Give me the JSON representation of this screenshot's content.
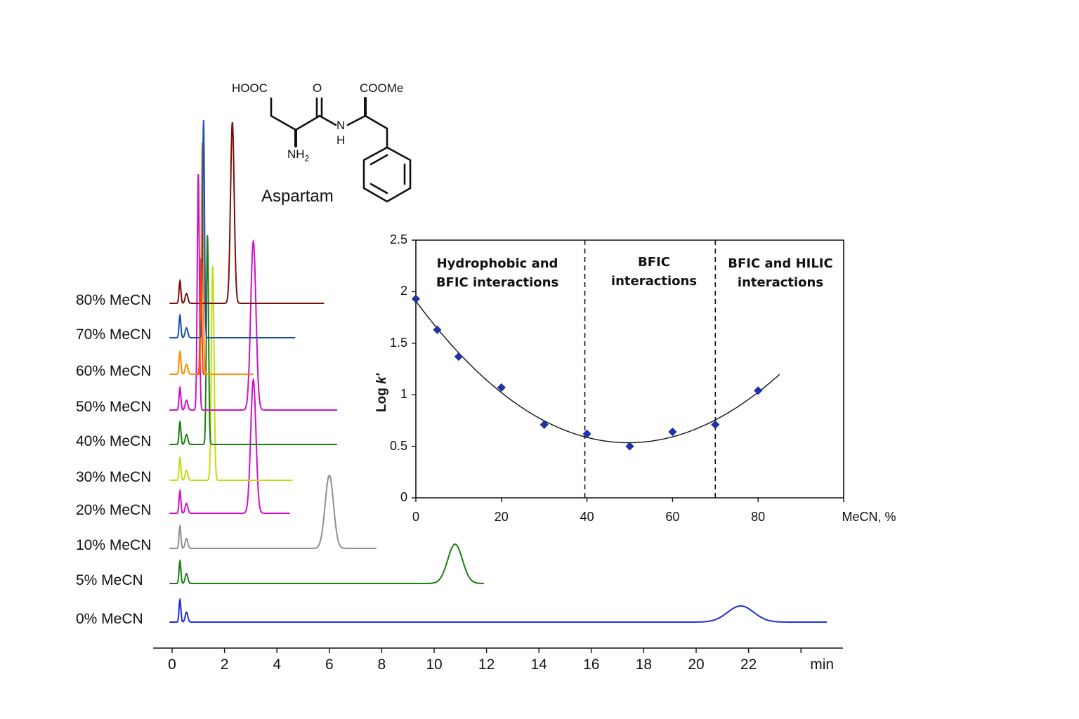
{
  "compound": {
    "name": "Aspartam",
    "groups": {
      "acid": "HOOC",
      "carbonyl_o": "O",
      "ester": "COOMe",
      "nh": "N",
      "nh_h": "H",
      "amine": "NH",
      "amine_sub": "2"
    }
  },
  "chart_data": [
    {
      "type": "line",
      "title": "Chromatograms of Aspartam at different MeCN content",
      "xlabel": "min",
      "x_ticks": [
        "0",
        "2",
        "4",
        "6",
        "8",
        "10",
        "12",
        "14",
        "16",
        "18",
        "20",
        "22"
      ],
      "xlim": [
        0,
        25.5
      ],
      "series": [
        {
          "name": "80% MeCN",
          "color": "#7a0f0a",
          "end_min": 5.8,
          "main_peak_min": 2.3,
          "main_peak_height": 258,
          "main_peak_width": 0.07
        },
        {
          "name": "70% MeCN",
          "color": "#1e4fb0",
          "end_min": 4.7,
          "main_peak_min": 1.2,
          "main_peak_height": 310,
          "main_peak_width": 0.035
        },
        {
          "name": "60% MeCN",
          "color": "#ff8c00",
          "end_min": 3.1,
          "main_peak_min": 1.15,
          "main_peak_height": 330,
          "main_peak_width": 0.035
        },
        {
          "name": "50% MeCN",
          "color": "#d010c8",
          "end_min": 6.3,
          "main_peak_min": 1.0,
          "main_peak_height": 336,
          "main_peak_width": 0.04,
          "second_peak_min": 3.1,
          "second_peak_height": 240,
          "second_peak_width": 0.1
        },
        {
          "name": "40% MeCN",
          "color": "#1a7f10",
          "end_min": 6.3,
          "main_peak_min": 1.35,
          "main_peak_height": 298,
          "main_peak_width": 0.04
        },
        {
          "name": "30% MeCN",
          "color": "#c4dc10",
          "end_min": 4.6,
          "main_peak_min": 1.55,
          "main_peak_height": 305,
          "main_peak_width": 0.05
        },
        {
          "name": "20% MeCN",
          "color": "#d010c8",
          "end_min": 4.5,
          "main_peak_min": 3.1,
          "main_peak_height": 190,
          "main_peak_width": 0.1
        },
        {
          "name": "10% MeCN",
          "color": "#909090",
          "end_min": 7.8,
          "main_peak_min": 6.0,
          "main_peak_height": 104,
          "main_peak_width": 0.16
        },
        {
          "name": "5% MeCN",
          "color": "#1a7f10",
          "end_min": 11.9,
          "main_peak_min": 10.8,
          "main_peak_height": 56,
          "main_peak_width": 0.28
        },
        {
          "name": "0% MeCN",
          "color": "#1f2fd8",
          "end_min": 25.0,
          "main_peak_min": 21.7,
          "main_peak_height": 23,
          "main_peak_width": 0.5
        }
      ],
      "extra_peak": {
        "name": "red-orange",
        "color": "#ff3a10",
        "min": 1.1,
        "height": 165,
        "width": 0.03,
        "on_trace": "60% MeCN"
      }
    },
    {
      "type": "scatter",
      "title": "",
      "xlabel": "MeCN, %",
      "ylabel": "Log k'",
      "xlim": [
        0,
        100
      ],
      "ylim": [
        0,
        2.5
      ],
      "x_ticks": [
        "0",
        "20",
        "40",
        "60",
        "80"
      ],
      "y_ticks": [
        "0",
        "0.5",
        "1",
        "1.5",
        "2",
        "2.5"
      ],
      "grid": false,
      "points": [
        {
          "x": 0,
          "y": 1.93
        },
        {
          "x": 5,
          "y": 1.63
        },
        {
          "x": 10,
          "y": 1.37
        },
        {
          "x": 20,
          "y": 1.07
        },
        {
          "x": 30,
          "y": 0.71
        },
        {
          "x": 40,
          "y": 0.62
        },
        {
          "x": 50,
          "y": 0.5
        },
        {
          "x": 60,
          "y": 0.64
        },
        {
          "x": 70,
          "y": 0.71
        },
        {
          "x": 80,
          "y": 1.04
        }
      ],
      "point_color": "#2233aa",
      "fit": {
        "type": "polynomial",
        "x_range": [
          0,
          85
        ],
        "description": "smooth U-shaped trend curve"
      },
      "dividers": [
        39.5,
        70
      ],
      "regions": [
        {
          "label_line1": "Hydrophobic and",
          "label_line2": "BFIC interactions"
        },
        {
          "label_line1": "BFIC",
          "label_line2": "interactions"
        },
        {
          "label_line1": "BFIC and HILIC",
          "label_line2": "interactions"
        }
      ]
    }
  ]
}
